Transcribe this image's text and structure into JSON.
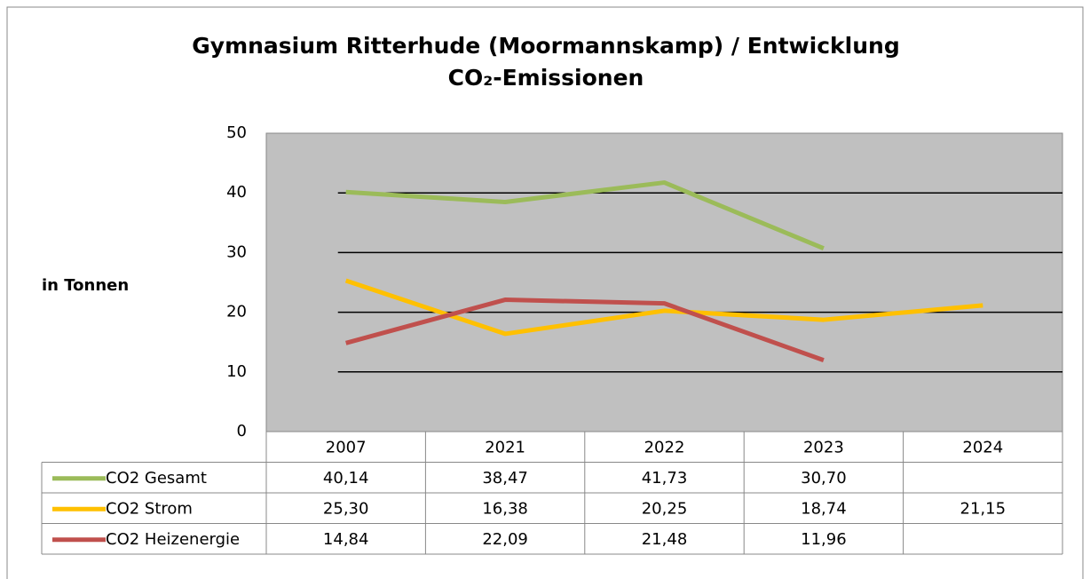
{
  "chart_data": {
    "type": "line",
    "title": "Gymnasium Ritterhude (Moormannskamp) / Entwicklung CO₂-Emissionen",
    "y_label": "in Tonnen",
    "categories": [
      "2007",
      "2021",
      "2022",
      "2023",
      "2024"
    ],
    "series": [
      {
        "name": "CO2 Gesamt",
        "color": "#9bbb59",
        "values": [
          40.14,
          38.47,
          41.73,
          30.7,
          null
        ],
        "value_labels": [
          "40,14",
          "38,47",
          "41,73",
          "30,70",
          null
        ]
      },
      {
        "name": "CO2 Strom",
        "color": "#ffc000",
        "values": [
          25.3,
          16.38,
          20.25,
          18.74,
          21.15
        ],
        "value_labels": [
          "25,30",
          "16,38",
          "20,25",
          "18,74",
          "21,15"
        ]
      },
      {
        "name": "CO2 Heizenergie",
        "color": "#c0504d",
        "values": [
          14.84,
          22.09,
          21.48,
          11.96,
          null
        ],
        "value_labels": [
          "14,84",
          "22,09",
          "21,48",
          "11,96",
          null
        ]
      }
    ],
    "ylim": [
      0,
      50
    ],
    "yticks": [
      0,
      10,
      20,
      30,
      40,
      50
    ],
    "grid": true,
    "plot_background": "#c0c0c0"
  }
}
